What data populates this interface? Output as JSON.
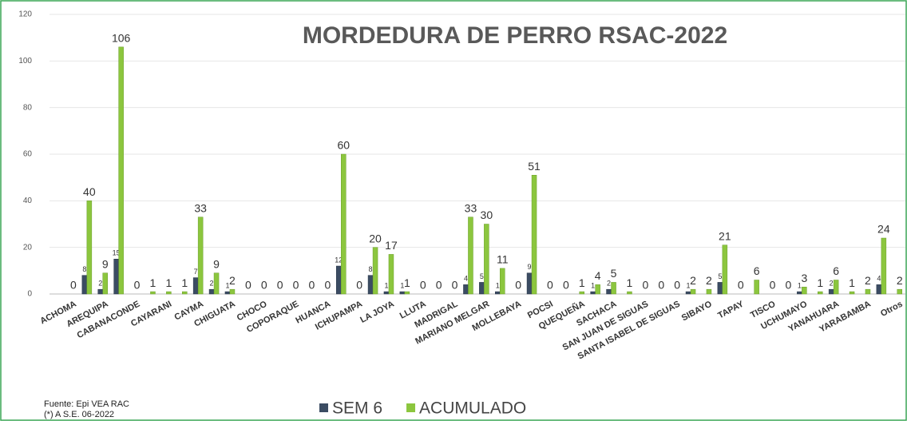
{
  "chart_data": {
    "type": "bar",
    "title": "MORDEDURA DE PERRO RSAC-2022",
    "categories": [
      "ACHOMA",
      null,
      "AREQUIPA",
      null,
      "CABANACONDE",
      null,
      "CAYARANI",
      null,
      "CAYMA",
      null,
      "CHIGUATA",
      null,
      "CHOCO",
      null,
      "COPORAQUE",
      null,
      "HUANCA",
      null,
      "ICHUPAMPA",
      null,
      "LA JOYA",
      null,
      "LLUTA",
      null,
      "MADRIGAL",
      null,
      "MARIANO MELGAR",
      null,
      "MOLLEBAYA",
      null,
      "POCSI",
      null,
      "QUEQUEÑA",
      null,
      "SACHACA",
      null,
      "SAN JUAN DE SIGUAS",
      null,
      "SANTA ISABEL DE SIGUAS",
      null,
      "SIBAYO",
      null,
      "TAPAY",
      null,
      "TISCO",
      null,
      "UCHUMAYO",
      null,
      "YANAHUARA",
      null,
      "YARABAMBA",
      null,
      "Otros"
    ],
    "series": [
      {
        "name": "SEM 6",
        "color": "#3b4c63",
        "values": [
          0,
          8,
          2,
          15,
          0,
          0,
          0,
          0,
          7,
          2,
          1,
          0,
          0,
          0,
          0,
          0,
          0,
          12,
          0,
          8,
          1,
          1,
          0,
          0,
          0,
          4,
          5,
          1,
          0,
          9,
          0,
          0,
          0,
          1,
          2,
          0,
          0,
          0,
          0,
          1,
          0,
          5,
          0,
          0,
          0,
          0,
          1,
          0,
          2,
          0,
          0,
          4,
          0
        ]
      },
      {
        "name": "ACUMULADO",
        "color": "#8cc63e",
        "values": [
          0,
          40,
          9,
          106,
          0,
          1,
          1,
          1,
          33,
          9,
          2,
          0,
          0,
          0,
          0,
          0,
          0,
          60,
          0,
          20,
          17,
          1,
          0,
          0,
          0,
          33,
          30,
          11,
          0,
          51,
          0,
          0,
          1,
          4,
          5,
          1,
          0,
          0,
          0,
          2,
          2,
          21,
          0,
          6,
          0,
          0,
          3,
          1,
          6,
          1,
          2,
          24,
          2
        ]
      }
    ],
    "ylim": [
      0,
      120
    ],
    "yticks": [
      0,
      20,
      40,
      60,
      80,
      100,
      120
    ],
    "grid": true,
    "notes": [
      "Fuente: Epi VEA RAC",
      "(*) A S.E. 06-2022"
    ]
  }
}
